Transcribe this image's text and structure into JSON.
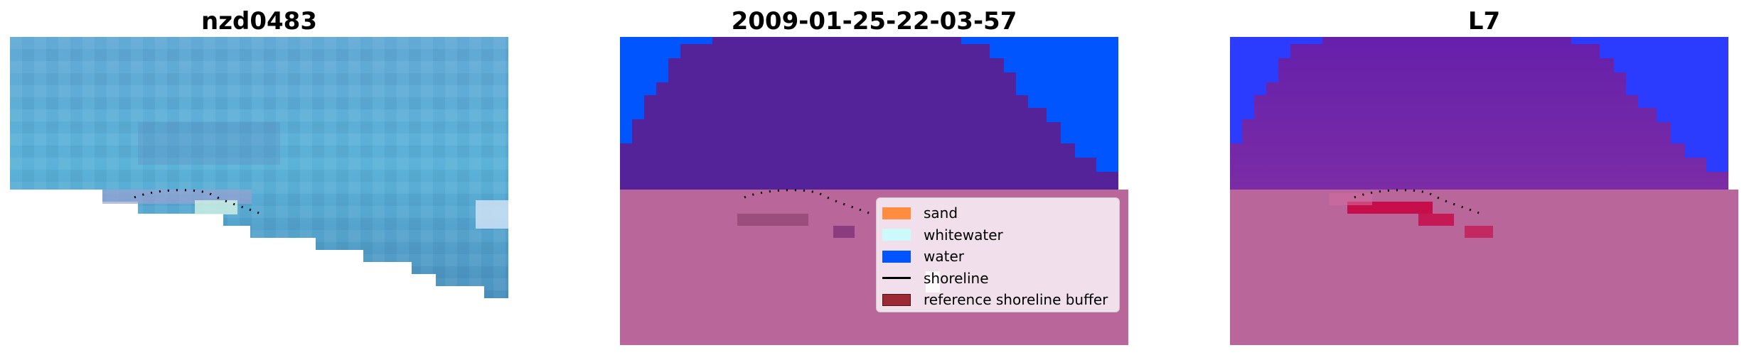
{
  "panels": [
    {
      "title": "nzd0483"
    },
    {
      "title": "2009-01-25-22-03-57"
    },
    {
      "title": "L7"
    }
  ],
  "legend": {
    "items": [
      {
        "label": "sand",
        "color": "#ff8c3f"
      },
      {
        "label": "whitewater",
        "color": "#ccfafa"
      },
      {
        "label": "water",
        "color": "#0055ff"
      },
      {
        "label": "shoreline",
        "color": "#000000"
      },
      {
        "label": "reference shoreline buffer",
        "color": "#9b2a35"
      }
    ]
  },
  "colors": {
    "sand_overlay": "#b9669a",
    "land_purple": "#54239a",
    "water_blue": "#0055ff",
    "image_blue": "#5aacd6",
    "buffer_red": "#c8003c"
  }
}
